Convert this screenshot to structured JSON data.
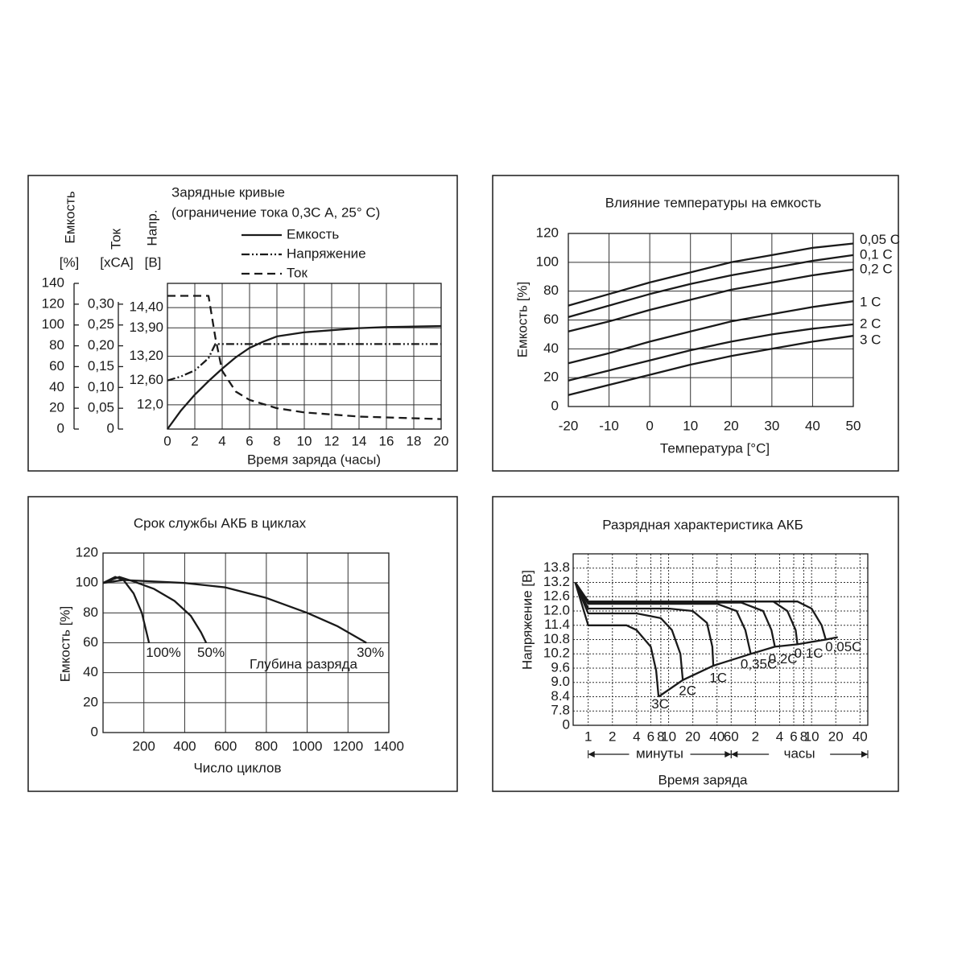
{
  "chart_data": [
    {
      "type": "line",
      "title": "Зарядные кривые",
      "subtitle": "(ограничение тока 0,3С А, 25° С)",
      "xlabel": "Время заряда (часы)",
      "ylabel": "Емкость",
      "ylabel_unit": "[%]",
      "y2label": "Ток",
      "y2label_unit": "[xCA]",
      "y3label": "Напр.",
      "y3label_unit": "[B]",
      "xlim": [
        0,
        20
      ],
      "xticks": [
        0,
        2,
        4,
        6,
        8,
        10,
        12,
        14,
        16,
        18,
        20
      ],
      "ylim": [
        0,
        140
      ],
      "yticks": [
        0,
        20,
        40,
        60,
        80,
        100,
        120,
        140
      ],
      "y2lim": [
        0,
        0.35
      ],
      "y2ticks": [
        0,
        {
          "value": 0.05,
          "label": "0,05"
        },
        {
          "value": 0.1,
          "label": "0,10"
        },
        {
          "value": 0.15,
          "label": "0,15"
        },
        {
          "value": 0.2,
          "label": "0,20"
        },
        {
          "value": 0.25,
          "label": "0,25"
        },
        {
          "value": 0.3,
          "label": "0,30"
        }
      ],
      "y3lim": [
        11.4,
        15.0
      ],
      "y3ticks": [
        {
          "value": 12,
          "label": "12,0"
        },
        {
          "value": 12.6,
          "label": "12,60"
        },
        {
          "value": 13.2,
          "label": "13,20"
        },
        {
          "value": 13.9,
          "label": "13,90"
        },
        {
          "value": 14.4,
          "label": "14,40"
        }
      ],
      "grid": "y3",
      "legend": "top",
      "series": [
        {
          "name": "Емкость",
          "color": "#1a1a1a",
          "dash": "solid",
          "x": [
            0,
            1,
            2,
            3,
            4,
            5,
            6,
            7,
            8,
            10,
            12,
            14,
            16,
            18,
            20
          ],
          "values": [
            0,
            18,
            33,
            46,
            58,
            69,
            78,
            84,
            89,
            93,
            95,
            97,
            98,
            98.5,
            99
          ]
        },
        {
          "name": "Напряжение",
          "color": "#1a1a1a",
          "dash": "dash-dot-dot",
          "axis": "y3",
          "x": [
            0,
            1,
            2,
            3,
            3.5,
            20
          ],
          "values": [
            12.6,
            12.7,
            12.85,
            13.15,
            13.5,
            13.5
          ]
        },
        {
          "name": "Ток",
          "color": "#1a1a1a",
          "dash": "dashed",
          "axis": "y2",
          "x": [
            0,
            3,
            3.5,
            4,
            5,
            6,
            8,
            10,
            14,
            20
          ],
          "values": [
            0.32,
            0.32,
            0.22,
            0.14,
            0.09,
            0.07,
            0.05,
            0.04,
            0.03,
            0.024
          ]
        }
      ]
    },
    {
      "type": "line",
      "title": "Влияние температуры на емкость",
      "xlabel": "Температура [°C]",
      "ylabel": "Емкость [%]",
      "xlim": [
        -20,
        50
      ],
      "xticks": [
        -20,
        -10,
        0,
        10,
        20,
        30,
        40,
        50
      ],
      "ylim": [
        0,
        120
      ],
      "yticks": [
        0,
        20,
        40,
        60,
        80,
        100,
        120
      ],
      "grid": true,
      "series": [
        {
          "name": "0,05 C",
          "color": "#1a1a1a",
          "dash": "solid",
          "x": [
            -20,
            -10,
            0,
            10,
            20,
            30,
            40,
            50
          ],
          "values": [
            70,
            78,
            86,
            93,
            100,
            105,
            110,
            113
          ]
        },
        {
          "name": "0,1 C",
          "color": "#1a1a1a",
          "dash": "solid",
          "x": [
            -20,
            -10,
            0,
            10,
            20,
            30,
            40,
            50
          ],
          "values": [
            62,
            70,
            78,
            85,
            91,
            96,
            101,
            105
          ]
        },
        {
          "name": "0,2 C",
          "color": "#1a1a1a",
          "dash": "solid",
          "x": [
            -20,
            -10,
            0,
            10,
            20,
            30,
            40,
            50
          ],
          "values": [
            52,
            59,
            67,
            74,
            81,
            86,
            91,
            95
          ]
        },
        {
          "name": "1 C",
          "color": "#1a1a1a",
          "dash": "solid",
          "x": [
            -20,
            -10,
            0,
            10,
            20,
            30,
            40,
            50
          ],
          "values": [
            30,
            37,
            45,
            52,
            59,
            64,
            69,
            73
          ]
        },
        {
          "name": "2 C",
          "color": "#1a1a1a",
          "dash": "solid",
          "x": [
            -20,
            -10,
            0,
            10,
            20,
            30,
            40,
            50
          ],
          "values": [
            18,
            25,
            32,
            39,
            45,
            50,
            54,
            57
          ]
        },
        {
          "name": "3 C",
          "color": "#1a1a1a",
          "dash": "solid",
          "x": [
            -20,
            -10,
            0,
            10,
            20,
            30,
            40,
            50
          ],
          "values": [
            8,
            15,
            22,
            29,
            35,
            40,
            45,
            49
          ]
        }
      ]
    },
    {
      "type": "line",
      "title": "Срок службы АКБ в циклах",
      "xlabel": "Число циклов",
      "ylabel": "Емкость [%]",
      "annotation": "Глубина разряда",
      "xlim": [
        0,
        1400
      ],
      "xticks": [
        200,
        400,
        600,
        800,
        1000,
        1200,
        1400
      ],
      "ylim": [
        0,
        120
      ],
      "yticks": [
        0,
        20,
        40,
        60,
        80,
        100,
        120
      ],
      "grid": true,
      "series": [
        {
          "name": "100%",
          "color": "#1a1a1a",
          "dash": "solid",
          "x": [
            0,
            60,
            100,
            150,
            190,
            225
          ],
          "values": [
            100,
            104,
            102,
            93,
            80,
            60
          ]
        },
        {
          "name": "50%",
          "color": "#1a1a1a",
          "dash": "solid",
          "x": [
            0,
            80,
            150,
            250,
            350,
            430,
            480,
            505
          ],
          "values": [
            100,
            104,
            101,
            96,
            88,
            78,
            67,
            60
          ]
        },
        {
          "name": "30%",
          "color": "#1a1a1a",
          "dash": "solid",
          "x": [
            0,
            100,
            400,
            600,
            800,
            1000,
            1150,
            1290
          ],
          "values": [
            100,
            102,
            100,
            97,
            90,
            80,
            71,
            60
          ]
        }
      ]
    },
    {
      "type": "line",
      "title": "Разрядная характеристика АКБ",
      "xlabel": "Время заряда",
      "ylabel": "Напряжение [В]",
      "x_groups": [
        "минуты",
        "часы"
      ],
      "xlog": true,
      "xlim": [
        0.65,
        3000
      ],
      "xticks": [
        1,
        2,
        4,
        6,
        8,
        10,
        20,
        40,
        60,
        {
          "value": 120,
          "label": "2"
        },
        {
          "value": 240,
          "label": "4"
        },
        {
          "value": 360,
          "label": "6"
        },
        {
          "value": 480,
          "label": "8"
        },
        {
          "value": 600,
          "label": "10"
        },
        {
          "value": 1200,
          "label": "20"
        },
        {
          "value": 2400,
          "label": "40"
        }
      ],
      "ylim": [
        7.2,
        14.4
      ],
      "ybreak": true,
      "yticks": [
        0,
        7.8,
        8.4,
        {
          "value": 9,
          "label": "9.0"
        },
        9.6,
        10.2,
        10.8,
        11.4,
        {
          "value": 12,
          "label": "12.0"
        },
        12.6,
        13.2,
        13.8
      ],
      "grid": "dotted",
      "series": [
        {
          "name": "3C",
          "color": "#1a1a1a",
          "dash": "solid",
          "x": [
            0.69,
            1,
            3,
            4,
            6,
            7,
            7.5
          ],
          "values": [
            13.2,
            11.4,
            11.4,
            11.2,
            10.5,
            9.5,
            8.4
          ]
        },
        {
          "name": "2C",
          "color": "#1a1a1a",
          "dash": "solid",
          "x": [
            0.69,
            1,
            4,
            8,
            11,
            14,
            15
          ],
          "values": [
            13.2,
            11.9,
            11.9,
            11.7,
            11.2,
            10.2,
            9.1
          ]
        },
        {
          "name": "1C",
          "color": "#1a1a1a",
          "dash": "solid",
          "x": [
            0.69,
            1,
            10,
            20,
            30,
            35,
            36
          ],
          "values": [
            13.2,
            12.1,
            12.1,
            12.0,
            11.5,
            10.5,
            9.7
          ]
        },
        {
          "name": "0,35C",
          "color": "#1a1a1a",
          "dash": "solid",
          "x": [
            0.69,
            1,
            40,
            70,
            90,
            105
          ],
          "values": [
            13.2,
            12.3,
            12.3,
            12.0,
            11.2,
            10.2
          ]
        },
        {
          "name": "0,2C",
          "color": "#1a1a1a",
          "dash": "solid",
          "x": [
            0.69,
            1,
            80,
            150,
            190,
            210
          ],
          "values": [
            13.2,
            12.35,
            12.35,
            12.0,
            11.2,
            10.5
          ]
        },
        {
          "name": "0,1C",
          "color": "#1a1a1a",
          "dash": "solid",
          "x": [
            0.69,
            1,
            200,
            300,
            380,
            400
          ],
          "values": [
            13.2,
            12.4,
            12.4,
            12.0,
            11.2,
            10.6
          ]
        },
        {
          "name": "0,05C",
          "color": "#1a1a1a",
          "dash": "solid",
          "x": [
            0.69,
            1,
            400,
            600,
            800,
            900
          ],
          "values": [
            13.2,
            12.4,
            12.4,
            12.1,
            11.4,
            10.8
          ]
        }
      ],
      "cutoff": {
        "x": [
          7.5,
          15,
          36,
          105,
          209,
          400,
          900,
          1270
        ],
        "values": [
          8.4,
          9.1,
          9.7,
          10.2,
          10.5,
          10.6,
          10.8,
          10.9
        ]
      }
    }
  ]
}
